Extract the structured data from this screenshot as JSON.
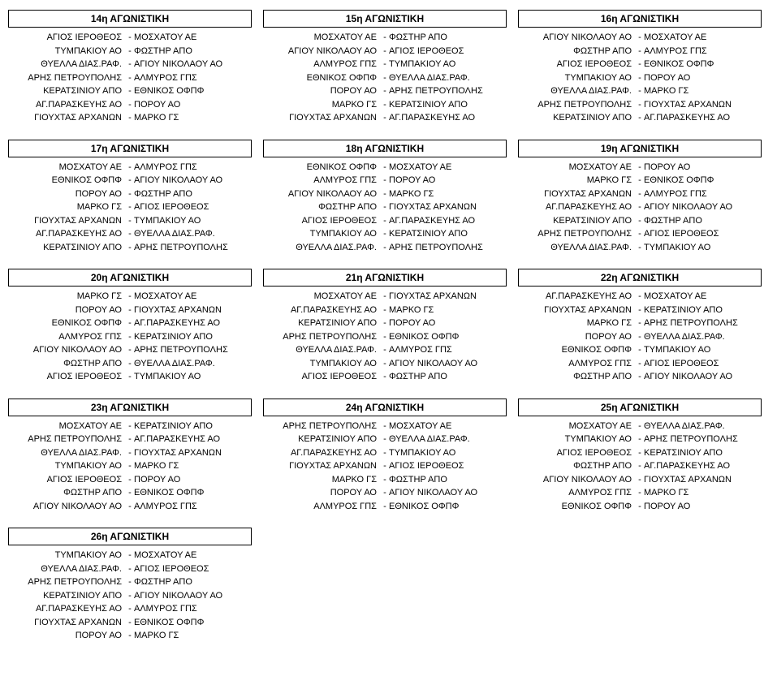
{
  "rows": [
    {
      "blocks": [
        {
          "title": "14η ΑΓΩΝΙΣΤΙΚΗ",
          "matches": [
            {
              "home": "ΑΓΙΟΣ ΙΕΡΟΘΕΟΣ",
              "away": "ΜΟΣΧΑΤΟΥ ΑΕ"
            },
            {
              "home": "ΤΥΜΠΑΚΙΟΥ ΑΟ",
              "away": "ΦΩΣΤΗΡ ΑΠΟ"
            },
            {
              "home": "ΘΥΕΛΛΑ ΔΙΑΣ.ΡΑΦ.",
              "away": "ΑΓΙΟΥ ΝΙΚΟΛΑΟΥ ΑΟ"
            },
            {
              "home": "ΑΡΗΣ ΠΕΤΡΟΥΠΟΛΗΣ",
              "away": "ΑΛΜΥΡΟΣ ΓΠΣ"
            },
            {
              "home": "ΚΕΡΑΤΣΙΝΙΟΥ ΑΠΟ",
              "away": "ΕΘΝΙΚΟΣ ΟΦΠΦ"
            },
            {
              "home": "ΑΓ.ΠΑΡΑΣΚΕΥΗΣ ΑΟ",
              "away": "ΠΟΡΟΥ ΑΟ"
            },
            {
              "home": "ΓΙΟΥΧΤΑΣ ΑΡΧΑΝΩΝ",
              "away": "ΜΑΡΚΟ ΓΣ"
            }
          ]
        },
        {
          "title": "15η ΑΓΩΝΙΣΤΙΚΗ",
          "matches": [
            {
              "home": "ΜΟΣΧΑΤΟΥ ΑΕ",
              "away": "ΦΩΣΤΗΡ ΑΠΟ"
            },
            {
              "home": "ΑΓΙΟΥ ΝΙΚΟΛΑΟΥ ΑΟ",
              "away": "ΑΓΙΟΣ ΙΕΡΟΘΕΟΣ"
            },
            {
              "home": "ΑΛΜΥΡΟΣ ΓΠΣ",
              "away": "ΤΥΜΠΑΚΙΟΥ ΑΟ"
            },
            {
              "home": "ΕΘΝΙΚΟΣ ΟΦΠΦ",
              "away": "ΘΥΕΛΛΑ ΔΙΑΣ.ΡΑΦ."
            },
            {
              "home": "ΠΟΡΟΥ ΑΟ",
              "away": "ΑΡΗΣ ΠΕΤΡΟΥΠΟΛΗΣ"
            },
            {
              "home": "ΜΑΡΚΟ ΓΣ",
              "away": "ΚΕΡΑΤΣΙΝΙΟΥ ΑΠΟ"
            },
            {
              "home": "ΓΙΟΥΧΤΑΣ ΑΡΧΑΝΩΝ",
              "away": "ΑΓ.ΠΑΡΑΣΚΕΥΗΣ ΑΟ"
            }
          ]
        },
        {
          "title": "16η ΑΓΩΝΙΣΤΙΚΗ",
          "matches": [
            {
              "home": "ΑΓΙΟΥ ΝΙΚΟΛΑΟΥ ΑΟ",
              "away": "ΜΟΣΧΑΤΟΥ ΑΕ"
            },
            {
              "home": "ΦΩΣΤΗΡ ΑΠΟ",
              "away": "ΑΛΜΥΡΟΣ ΓΠΣ"
            },
            {
              "home": "ΑΓΙΟΣ ΙΕΡΟΘΕΟΣ",
              "away": "ΕΘΝΙΚΟΣ ΟΦΠΦ"
            },
            {
              "home": "ΤΥΜΠΑΚΙΟΥ ΑΟ",
              "away": "ΠΟΡΟΥ ΑΟ"
            },
            {
              "home": "ΘΥΕΛΛΑ ΔΙΑΣ.ΡΑΦ.",
              "away": "ΜΑΡΚΟ ΓΣ"
            },
            {
              "home": "ΑΡΗΣ ΠΕΤΡΟΥΠΟΛΗΣ",
              "away": "ΓΙΟΥΧΤΑΣ ΑΡΧΑΝΩΝ"
            },
            {
              "home": "ΚΕΡΑΤΣΙΝΙΟΥ ΑΠΟ",
              "away": "ΑΓ.ΠΑΡΑΣΚΕΥΗΣ ΑΟ"
            }
          ]
        }
      ]
    },
    {
      "blocks": [
        {
          "title": "17η ΑΓΩΝΙΣΤΙΚΗ",
          "matches": [
            {
              "home": "ΜΟΣΧΑΤΟΥ ΑΕ",
              "away": "ΑΛΜΥΡΟΣ ΓΠΣ"
            },
            {
              "home": "ΕΘΝΙΚΟΣ ΟΦΠΦ",
              "away": "ΑΓΙΟΥ ΝΙΚΟΛΑΟΥ ΑΟ"
            },
            {
              "home": "ΠΟΡΟΥ ΑΟ",
              "away": "ΦΩΣΤΗΡ ΑΠΟ"
            },
            {
              "home": "ΜΑΡΚΟ ΓΣ",
              "away": "ΑΓΙΟΣ ΙΕΡΟΘΕΟΣ"
            },
            {
              "home": "ΓΙΟΥΧΤΑΣ ΑΡΧΑΝΩΝ",
              "away": "ΤΥΜΠΑΚΙΟΥ ΑΟ"
            },
            {
              "home": "ΑΓ.ΠΑΡΑΣΚΕΥΗΣ ΑΟ",
              "away": "ΘΥΕΛΛΑ ΔΙΑΣ.ΡΑΦ."
            },
            {
              "home": "ΚΕΡΑΤΣΙΝΙΟΥ ΑΠΟ",
              "away": "ΑΡΗΣ ΠΕΤΡΟΥΠΟΛΗΣ"
            }
          ]
        },
        {
          "title": "18η ΑΓΩΝΙΣΤΙΚΗ",
          "matches": [
            {
              "home": "ΕΘΝΙΚΟΣ ΟΦΠΦ",
              "away": "ΜΟΣΧΑΤΟΥ ΑΕ"
            },
            {
              "home": "ΑΛΜΥΡΟΣ ΓΠΣ",
              "away": "ΠΟΡΟΥ ΑΟ"
            },
            {
              "home": "ΑΓΙΟΥ ΝΙΚΟΛΑΟΥ ΑΟ",
              "away": "ΜΑΡΚΟ ΓΣ"
            },
            {
              "home": "ΦΩΣΤΗΡ ΑΠΟ",
              "away": "ΓΙΟΥΧΤΑΣ ΑΡΧΑΝΩΝ"
            },
            {
              "home": "ΑΓΙΟΣ ΙΕΡΟΘΕΟΣ",
              "away": "ΑΓ.ΠΑΡΑΣΚΕΥΗΣ ΑΟ"
            },
            {
              "home": "ΤΥΜΠΑΚΙΟΥ ΑΟ",
              "away": "ΚΕΡΑΤΣΙΝΙΟΥ ΑΠΟ"
            },
            {
              "home": "ΘΥΕΛΛΑ ΔΙΑΣ.ΡΑΦ.",
              "away": "ΑΡΗΣ ΠΕΤΡΟΥΠΟΛΗΣ"
            }
          ]
        },
        {
          "title": "19η ΑΓΩΝΙΣΤΙΚΗ",
          "matches": [
            {
              "home": "ΜΟΣΧΑΤΟΥ ΑΕ",
              "away": "ΠΟΡΟΥ ΑΟ"
            },
            {
              "home": "ΜΑΡΚΟ ΓΣ",
              "away": "ΕΘΝΙΚΟΣ ΟΦΠΦ"
            },
            {
              "home": "ΓΙΟΥΧΤΑΣ ΑΡΧΑΝΩΝ",
              "away": "ΑΛΜΥΡΟΣ ΓΠΣ"
            },
            {
              "home": "ΑΓ.ΠΑΡΑΣΚΕΥΗΣ ΑΟ",
              "away": "ΑΓΙΟΥ ΝΙΚΟΛΑΟΥ ΑΟ"
            },
            {
              "home": "ΚΕΡΑΤΣΙΝΙΟΥ ΑΠΟ",
              "away": "ΦΩΣΤΗΡ ΑΠΟ"
            },
            {
              "home": "ΑΡΗΣ ΠΕΤΡΟΥΠΟΛΗΣ",
              "away": "ΑΓΙΟΣ ΙΕΡΟΘΕΟΣ"
            },
            {
              "home": "ΘΥΕΛΛΑ ΔΙΑΣ.ΡΑΦ.",
              "away": "ΤΥΜΠΑΚΙΟΥ ΑΟ"
            }
          ]
        }
      ]
    },
    {
      "blocks": [
        {
          "title": "20η ΑΓΩΝΙΣΤΙΚΗ",
          "matches": [
            {
              "home": "ΜΑΡΚΟ ΓΣ",
              "away": "ΜΟΣΧΑΤΟΥ ΑΕ"
            },
            {
              "home": "ΠΟΡΟΥ ΑΟ",
              "away": "ΓΙΟΥΧΤΑΣ ΑΡΧΑΝΩΝ"
            },
            {
              "home": "ΕΘΝΙΚΟΣ ΟΦΠΦ",
              "away": "ΑΓ.ΠΑΡΑΣΚΕΥΗΣ ΑΟ"
            },
            {
              "home": "ΑΛΜΥΡΟΣ ΓΠΣ",
              "away": "ΚΕΡΑΤΣΙΝΙΟΥ ΑΠΟ"
            },
            {
              "home": "ΑΓΙΟΥ ΝΙΚΟΛΑΟΥ ΑΟ",
              "away": "ΑΡΗΣ ΠΕΤΡΟΥΠΟΛΗΣ"
            },
            {
              "home": "ΦΩΣΤΗΡ ΑΠΟ",
              "away": "ΘΥΕΛΛΑ ΔΙΑΣ.ΡΑΦ."
            },
            {
              "home": "ΑΓΙΟΣ ΙΕΡΟΘΕΟΣ",
              "away": "ΤΥΜΠΑΚΙΟΥ ΑΟ"
            }
          ]
        },
        {
          "title": "21η ΑΓΩΝΙΣΤΙΚΗ",
          "matches": [
            {
              "home": "ΜΟΣΧΑΤΟΥ ΑΕ",
              "away": "ΓΙΟΥΧΤΑΣ ΑΡΧΑΝΩΝ"
            },
            {
              "home": "ΑΓ.ΠΑΡΑΣΚΕΥΗΣ ΑΟ",
              "away": "ΜΑΡΚΟ ΓΣ"
            },
            {
              "home": "ΚΕΡΑΤΣΙΝΙΟΥ ΑΠΟ",
              "away": "ΠΟΡΟΥ ΑΟ"
            },
            {
              "home": "ΑΡΗΣ ΠΕΤΡΟΥΠΟΛΗΣ",
              "away": "ΕΘΝΙΚΟΣ ΟΦΠΦ"
            },
            {
              "home": "ΘΥΕΛΛΑ ΔΙΑΣ.ΡΑΦ.",
              "away": "ΑΛΜΥΡΟΣ ΓΠΣ"
            },
            {
              "home": "ΤΥΜΠΑΚΙΟΥ ΑΟ",
              "away": "ΑΓΙΟΥ ΝΙΚΟΛΑΟΥ ΑΟ"
            },
            {
              "home": "ΑΓΙΟΣ ΙΕΡΟΘΕΟΣ",
              "away": "ΦΩΣΤΗΡ ΑΠΟ"
            }
          ]
        },
        {
          "title": "22η ΑΓΩΝΙΣΤΙΚΗ",
          "matches": [
            {
              "home": "ΑΓ.ΠΑΡΑΣΚΕΥΗΣ ΑΟ",
              "away": "ΜΟΣΧΑΤΟΥ ΑΕ"
            },
            {
              "home": "ΓΙΟΥΧΤΑΣ ΑΡΧΑΝΩΝ",
              "away": "ΚΕΡΑΤΣΙΝΙΟΥ ΑΠΟ"
            },
            {
              "home": "ΜΑΡΚΟ ΓΣ",
              "away": "ΑΡΗΣ ΠΕΤΡΟΥΠΟΛΗΣ"
            },
            {
              "home": "ΠΟΡΟΥ ΑΟ",
              "away": "ΘΥΕΛΛΑ ΔΙΑΣ.ΡΑΦ."
            },
            {
              "home": "ΕΘΝΙΚΟΣ ΟΦΠΦ",
              "away": "ΤΥΜΠΑΚΙΟΥ ΑΟ"
            },
            {
              "home": "ΑΛΜΥΡΟΣ ΓΠΣ",
              "away": "ΑΓΙΟΣ ΙΕΡΟΘΕΟΣ"
            },
            {
              "home": "ΦΩΣΤΗΡ ΑΠΟ",
              "away": "ΑΓΙΟΥ ΝΙΚΟΛΑΟΥ ΑΟ"
            }
          ]
        }
      ]
    },
    {
      "blocks": [
        {
          "title": "23η ΑΓΩΝΙΣΤΙΚΗ",
          "matches": [
            {
              "home": "ΜΟΣΧΑΤΟΥ ΑΕ",
              "away": "ΚΕΡΑΤΣΙΝΙΟΥ ΑΠΟ"
            },
            {
              "home": "ΑΡΗΣ ΠΕΤΡΟΥΠΟΛΗΣ",
              "away": "ΑΓ.ΠΑΡΑΣΚΕΥΗΣ ΑΟ"
            },
            {
              "home": "ΘΥΕΛΛΑ ΔΙΑΣ.ΡΑΦ.",
              "away": "ΓΙΟΥΧΤΑΣ ΑΡΧΑΝΩΝ"
            },
            {
              "home": "ΤΥΜΠΑΚΙΟΥ ΑΟ",
              "away": "ΜΑΡΚΟ ΓΣ"
            },
            {
              "home": "ΑΓΙΟΣ ΙΕΡΟΘΕΟΣ",
              "away": "ΠΟΡΟΥ ΑΟ"
            },
            {
              "home": "ΦΩΣΤΗΡ ΑΠΟ",
              "away": "ΕΘΝΙΚΟΣ ΟΦΠΦ"
            },
            {
              "home": "ΑΓΙΟΥ ΝΙΚΟΛΑΟΥ ΑΟ",
              "away": "ΑΛΜΥΡΟΣ ΓΠΣ"
            }
          ]
        },
        {
          "title": "24η ΑΓΩΝΙΣΤΙΚΗ",
          "matches": [
            {
              "home": "ΑΡΗΣ ΠΕΤΡΟΥΠΟΛΗΣ",
              "away": "ΜΟΣΧΑΤΟΥ ΑΕ"
            },
            {
              "home": "ΚΕΡΑΤΣΙΝΙΟΥ ΑΠΟ",
              "away": "ΘΥΕΛΛΑ ΔΙΑΣ.ΡΑΦ."
            },
            {
              "home": "ΑΓ.ΠΑΡΑΣΚΕΥΗΣ ΑΟ",
              "away": "ΤΥΜΠΑΚΙΟΥ ΑΟ"
            },
            {
              "home": "ΓΙΟΥΧΤΑΣ ΑΡΧΑΝΩΝ",
              "away": "ΑΓΙΟΣ ΙΕΡΟΘΕΟΣ"
            },
            {
              "home": "ΜΑΡΚΟ ΓΣ",
              "away": "ΦΩΣΤΗΡ ΑΠΟ"
            },
            {
              "home": "ΠΟΡΟΥ ΑΟ",
              "away": "ΑΓΙΟΥ ΝΙΚΟΛΑΟΥ ΑΟ"
            },
            {
              "home": "ΑΛΜΥΡΟΣ ΓΠΣ",
              "away": "ΕΘΝΙΚΟΣ ΟΦΠΦ"
            }
          ]
        },
        {
          "title": "25η ΑΓΩΝΙΣΤΙΚΗ",
          "matches": [
            {
              "home": "ΜΟΣΧΑΤΟΥ ΑΕ",
              "away": "ΘΥΕΛΛΑ ΔΙΑΣ.ΡΑΦ."
            },
            {
              "home": "ΤΥΜΠΑΚΙΟΥ ΑΟ",
              "away": "ΑΡΗΣ ΠΕΤΡΟΥΠΟΛΗΣ"
            },
            {
              "home": "ΑΓΙΟΣ ΙΕΡΟΘΕΟΣ",
              "away": "ΚΕΡΑΤΣΙΝΙΟΥ ΑΠΟ"
            },
            {
              "home": "ΦΩΣΤΗΡ ΑΠΟ",
              "away": "ΑΓ.ΠΑΡΑΣΚΕΥΗΣ ΑΟ"
            },
            {
              "home": "ΑΓΙΟΥ ΝΙΚΟΛΑΟΥ ΑΟ",
              "away": "ΓΙΟΥΧΤΑΣ ΑΡΧΑΝΩΝ"
            },
            {
              "home": "ΑΛΜΥΡΟΣ ΓΠΣ",
              "away": "ΜΑΡΚΟ ΓΣ"
            },
            {
              "home": "ΕΘΝΙΚΟΣ ΟΦΠΦ",
              "away": "ΠΟΡΟΥ ΑΟ"
            }
          ]
        }
      ]
    },
    {
      "blocks": [
        {
          "title": "26η ΑΓΩΝΙΣΤΙΚΗ",
          "matches": [
            {
              "home": "ΤΥΜΠΑΚΙΟΥ ΑΟ",
              "away": "ΜΟΣΧΑΤΟΥ ΑΕ"
            },
            {
              "home": "ΘΥΕΛΛΑ ΔΙΑΣ.ΡΑΦ.",
              "away": "ΑΓΙΟΣ ΙΕΡΟΘΕΟΣ"
            },
            {
              "home": "ΑΡΗΣ ΠΕΤΡΟΥΠΟΛΗΣ",
              "away": "ΦΩΣΤΗΡ ΑΠΟ"
            },
            {
              "home": "ΚΕΡΑΤΣΙΝΙΟΥ ΑΠΟ",
              "away": "ΑΓΙΟΥ ΝΙΚΟΛΑΟΥ ΑΟ"
            },
            {
              "home": "ΑΓ.ΠΑΡΑΣΚΕΥΗΣ ΑΟ",
              "away": "ΑΛΜΥΡΟΣ ΓΠΣ"
            },
            {
              "home": "ΓΙΟΥΧΤΑΣ ΑΡΧΑΝΩΝ",
              "away": "ΕΘΝΙΚΟΣ ΟΦΠΦ"
            },
            {
              "home": "ΠΟΡΟΥ ΑΟ",
              "away": "ΜΑΡΚΟ ΓΣ"
            }
          ]
        }
      ]
    }
  ]
}
